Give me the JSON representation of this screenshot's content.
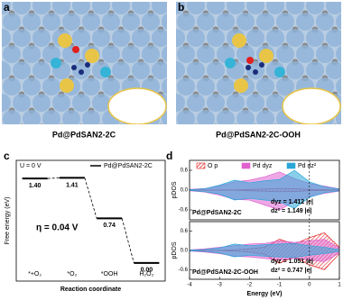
{
  "figure": {
    "panels": [
      "a",
      "b",
      "c",
      "d"
    ],
    "captions": [
      "Pd@PdSAN2-2C",
      "Pd@PdSAN2-2C-OOH"
    ]
  },
  "chart_data": [
    {
      "type": "energy",
      "ylabel": "Free energy (eV)",
      "xlabel": "Reaction coordinate",
      "categories": [
        "*+O₂",
        "*O₂",
        "*OOH",
        "H₂O₂"
      ],
      "series": [
        {
          "name": "Pd@PdSAN2-2C",
          "color": "#000000",
          "values": [
            1.4,
            1.41,
            0.74,
            0.0
          ],
          "value_labels": [
            "1.40",
            "1.41",
            "0.74",
            "0.00"
          ]
        }
      ],
      "annotations": [
        "U = 0 V",
        "η = 0.04 V"
      ],
      "ylim": [
        -0.3,
        1.7
      ]
    },
    {
      "type": "pdos",
      "ylabel": "pDOS",
      "label": "Pd@PdSAN2-2C",
      "annotations": [
        "dyz = 1.412 |e|",
        "dz² = 1.149 |e|"
      ],
      "x": [
        -4,
        -3.5,
        -3,
        -2.5,
        -2,
        -1.5,
        -1,
        -0.5,
        0,
        0.5,
        1
      ],
      "series": [
        {
          "name": "O p",
          "color": "#e02020",
          "up": [
            0,
            0,
            0,
            0,
            0.02,
            0.03,
            0.05,
            0.04,
            0.02,
            0.01,
            0
          ],
          "down": [
            0,
            0,
            0,
            0,
            -0.02,
            -0.03,
            -0.05,
            -0.04,
            -0.02,
            -0.01,
            0
          ]
        },
        {
          "name": "Pd dyz",
          "color": "#e060d0",
          "up": [
            0.02,
            0.05,
            0.12,
            0.25,
            0.3,
            0.4,
            0.55,
            0.35,
            0.2,
            0.12,
            0.04
          ],
          "down": [
            -0.02,
            -0.06,
            -0.15,
            -0.28,
            -0.3,
            -0.45,
            -0.6,
            -0.35,
            -0.2,
            -0.1,
            -0.03
          ]
        },
        {
          "name": "Pd dz²",
          "color": "#2aa7d8",
          "up": [
            0.01,
            0.04,
            0.15,
            0.3,
            0.22,
            0.28,
            0.32,
            0.6,
            0.25,
            0.1,
            0.03
          ],
          "down": [
            -0.01,
            -0.05,
            -0.12,
            -0.3,
            -0.25,
            -0.3,
            -0.35,
            -0.55,
            -0.22,
            -0.08,
            -0.02
          ]
        }
      ],
      "xlim": [
        -4,
        1
      ],
      "ylim": [
        -0.9,
        0.9
      ],
      "yticks": [
        -0.6,
        {
          "value": 0,
          "label": "0.0"
        },
        0.6
      ]
    },
    {
      "type": "pdos",
      "ylabel": "pDOS",
      "xlabel": "Energy (eV)",
      "label": "Pd@PdSAN2-2C-OOH",
      "annotations": [
        "dyz = 1.051 |e|",
        "dz² = 0.747 |e|"
      ],
      "x": [
        -4,
        -3.5,
        -3,
        -2.5,
        -2,
        -1.5,
        -1,
        -0.5,
        0,
        0.5,
        1
      ],
      "series": [
        {
          "name": "O p",
          "color": "#e02020",
          "up": [
            0,
            0,
            0,
            0.02,
            0.05,
            0.1,
            0.35,
            0.2,
            0.4,
            0.55,
            0.1
          ],
          "down": [
            0,
            0,
            0,
            -0.02,
            -0.05,
            -0.12,
            -0.4,
            -0.2,
            -0.45,
            -0.6,
            -0.1
          ]
        },
        {
          "name": "Pd dyz",
          "color": "#e060d0",
          "up": [
            0.02,
            0.05,
            0.1,
            0.15,
            0.2,
            0.22,
            0.3,
            0.25,
            0.3,
            0.35,
            0.08
          ],
          "down": [
            -0.02,
            -0.05,
            -0.1,
            -0.18,
            -0.2,
            -0.25,
            -0.3,
            -0.25,
            -0.3,
            -0.35,
            -0.08
          ]
        },
        {
          "name": "Pd dz²",
          "color": "#2aa7d8",
          "up": [
            0.01,
            0.03,
            0.08,
            0.2,
            0.15,
            0.18,
            0.2,
            0.22,
            0.15,
            0.1,
            0.03
          ],
          "down": [
            -0.01,
            -0.03,
            -0.08,
            -0.2,
            -0.15,
            -0.18,
            -0.2,
            -0.22,
            -0.15,
            -0.1,
            -0.03
          ]
        }
      ],
      "xlim": [
        -4,
        1
      ],
      "ylim": [
        -0.9,
        0.9
      ],
      "yticks": [
        -0.6,
        {
          "value": 0,
          "label": "0.0"
        },
        0.6
      ],
      "xticks": [
        -4,
        -3,
        -2,
        -1,
        0,
        1
      ]
    }
  ]
}
